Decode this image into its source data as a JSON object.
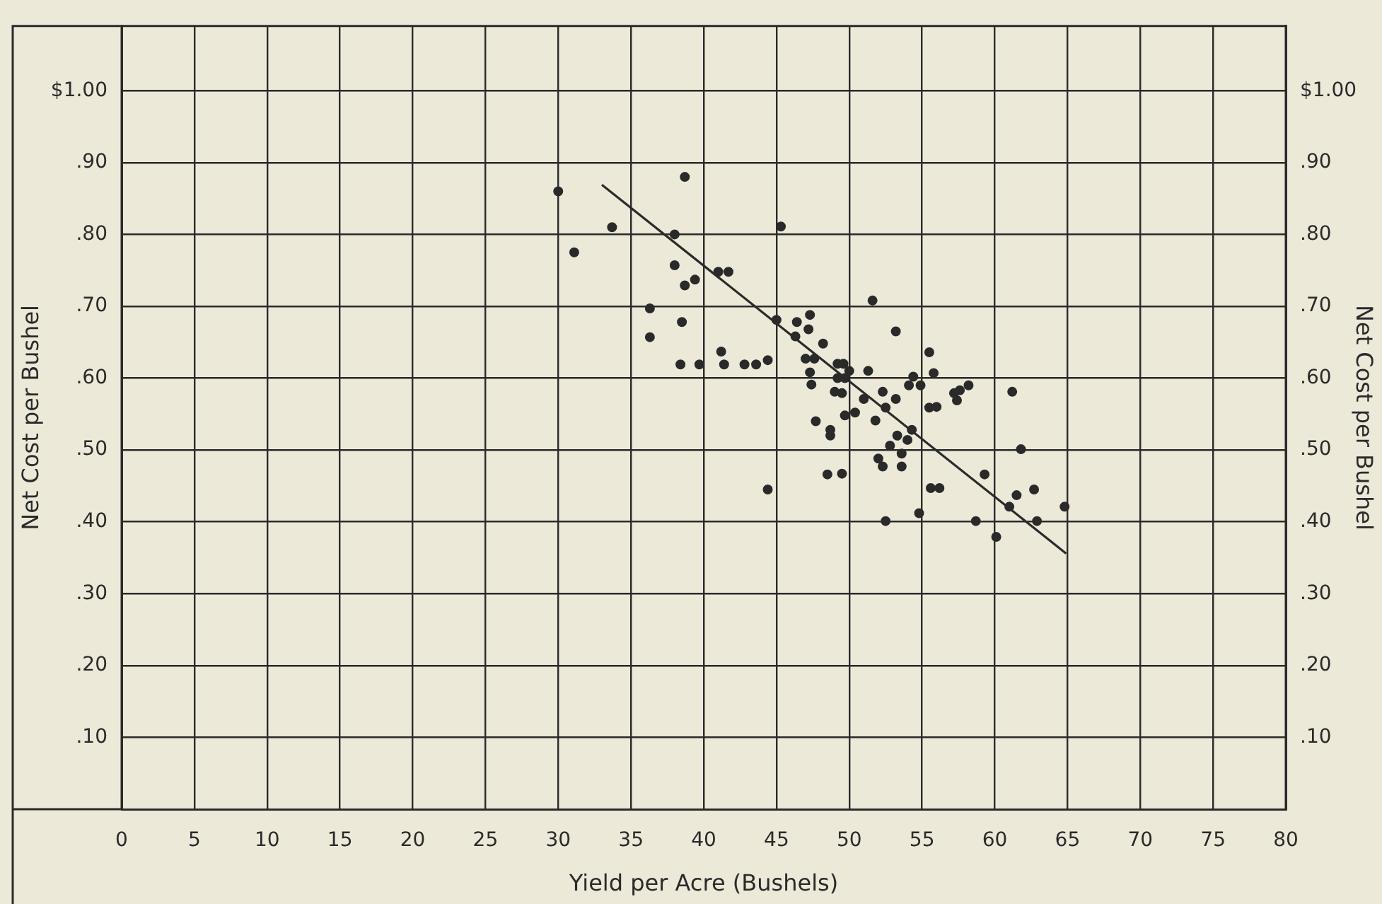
{
  "chart_data": {
    "type": "scatter",
    "xlabel": "Yield per Acre (Bushels)",
    "ylabel": "Net Cost per Bushel",
    "y2label": "Net Cost per Bushel",
    "xlim": [
      0,
      80
    ],
    "xticks": [
      0,
      5,
      10,
      15,
      20,
      25,
      30,
      35,
      40,
      45,
      50,
      55,
      60,
      65,
      70,
      75,
      80
    ],
    "ylim": [
      0,
      1.09
    ],
    "yticks": [
      {
        "value": 0.1,
        "label": ".10"
      },
      {
        "value": 0.2,
        "label": ".20"
      },
      {
        "value": 0.3,
        "label": ".30"
      },
      {
        "value": 0.4,
        "label": ".40"
      },
      {
        "value": 0.5,
        "label": ".50"
      },
      {
        "value": 0.6,
        "label": ".60"
      },
      {
        "value": 0.7,
        "label": ".70"
      },
      {
        "value": 0.8,
        "label": ".80"
      },
      {
        "value": 0.9,
        "label": ".90"
      },
      {
        "value": 1,
        "label": "$1.00"
      }
    ],
    "y2lim": [
      0,
      1.09
    ],
    "y2ticks": [
      {
        "value": 0.1,
        "label": ".10"
      },
      {
        "value": 0.2,
        "label": ".20"
      },
      {
        "value": 0.3,
        "label": ".30"
      },
      {
        "value": 0.4,
        "label": ".40"
      },
      {
        "value": 0.5,
        "label": ".50"
      },
      {
        "value": 0.6,
        "label": ".60"
      },
      {
        "value": 0.7,
        "label": ".70"
      },
      {
        "value": 0.8,
        "label": ".80"
      },
      {
        "value": 0.9,
        "label": ".90"
      },
      {
        "value": 1,
        "label": "$1.00"
      }
    ],
    "grid": true,
    "marker": "circle",
    "legend": false,
    "series": [
      {
        "color": "#2a2a2a",
        "x": [
          30.0,
          31.1,
          33.7,
          38.7,
          38.0,
          38.0,
          38.7,
          39.4,
          41.0,
          41.7,
          36.3,
          36.3,
          38.5,
          41.2,
          38.4,
          39.7,
          41.4,
          42.8,
          43.6,
          44.4,
          45.3,
          44.4,
          45.0,
          46.4,
          47.3,
          47.2,
          46.3,
          48.2,
          47.0,
          47.6,
          47.3,
          47.4,
          47.7,
          48.7,
          48.7,
          48.5,
          49.5,
          49.2,
          49.6,
          50.0,
          49.2,
          49.7,
          49.0,
          49.5,
          49.7,
          50.4,
          51.3,
          51.6,
          51.0,
          51.8,
          52.3,
          52.5,
          53.2,
          53.2,
          54.1,
          54.4,
          54.9,
          55.5,
          55.8,
          53.3,
          54.0,
          54.3,
          52.8,
          53.6,
          53.6,
          52.0,
          52.3,
          55.5,
          56.0,
          57.2,
          57.6,
          57.4,
          58.2,
          61.2,
          61.8,
          59.3,
          55.6,
          56.2,
          54.8,
          52.5,
          58.7,
          60.1,
          61.5,
          62.7,
          61.0,
          62.9,
          64.8
        ],
        "values": [
          0.86,
          0.775,
          0.81,
          0.88,
          0.8,
          0.757,
          0.729,
          0.737,
          0.748,
          0.748,
          0.697,
          0.657,
          0.678,
          0.637,
          0.619,
          0.619,
          0.619,
          0.619,
          0.619,
          0.625,
          0.811,
          0.445,
          0.681,
          0.678,
          0.688,
          0.668,
          0.658,
          0.648,
          0.627,
          0.627,
          0.608,
          0.591,
          0.54,
          0.528,
          0.52,
          0.466,
          0.467,
          0.62,
          0.62,
          0.61,
          0.6,
          0.6,
          0.581,
          0.579,
          0.548,
          0.552,
          0.61,
          0.708,
          0.571,
          0.541,
          0.581,
          0.559,
          0.571,
          0.665,
          0.59,
          0.602,
          0.59,
          0.636,
          0.607,
          0.52,
          0.514,
          0.528,
          0.506,
          0.495,
          0.477,
          0.488,
          0.477,
          0.559,
          0.56,
          0.579,
          0.583,
          0.569,
          0.59,
          0.581,
          0.501,
          0.466,
          0.447,
          0.447,
          0.412,
          0.401,
          0.401,
          0.379,
          0.437,
          0.445,
          0.421,
          0.401,
          0.421
        ]
      },
      {
        "type": "line",
        "color": "#2a2a2a",
        "marker": "none",
        "x": [
          33.0,
          64.9
        ],
        "values": [
          0.869,
          0.356
        ]
      }
    ]
  }
}
